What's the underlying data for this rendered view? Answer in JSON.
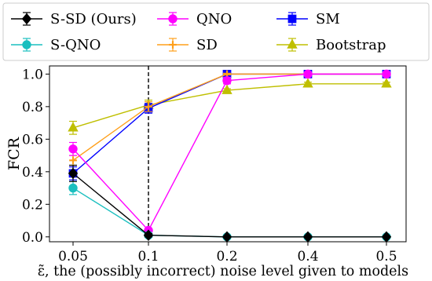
{
  "chart_data": {
    "type": "line",
    "x": [
      "0.05",
      "0.1",
      "0.2",
      "0.4",
      "0.5"
    ],
    "xlabel": "ε̃, the (possibly incorrect) noise level given to models",
    "ylabel": "FCR",
    "ylim": [
      -0.03,
      1.05
    ],
    "yticks": [
      "0.0",
      "0.2",
      "0.4",
      "0.6",
      "0.8",
      "1.0"
    ],
    "grid": false,
    "legend_position": "top",
    "reference_line": {
      "x": "0.1",
      "style": "dashed",
      "color": "#000000"
    },
    "series": [
      {
        "name": "S-SD (Ours)",
        "color": "#000000",
        "marker": "diamond",
        "values": [
          0.39,
          0.01,
          0.0,
          0.0,
          0.0
        ],
        "errors": [
          0.05,
          0.01,
          0.005,
          0.005,
          0.005
        ]
      },
      {
        "name": "S-QNO",
        "color": "#1ABFBF",
        "marker": "circle",
        "values": [
          0.3,
          0.01,
          0.0,
          0.0,
          0.0
        ],
        "errors": [
          0.04,
          0.01,
          0.005,
          0.005,
          0.005
        ]
      },
      {
        "name": "QNO",
        "color": "#FF00FF",
        "marker": "circle",
        "values": [
          0.54,
          0.04,
          0.96,
          1.0,
          1.0
        ],
        "errors": [
          0.04,
          0.01,
          0.02,
          0.005,
          0.005
        ]
      },
      {
        "name": "SD",
        "color": "#FF9F1A",
        "marker": "plus",
        "values": [
          0.47,
          0.8,
          1.0,
          1.0,
          1.0
        ],
        "errors": [
          0.03,
          0.03,
          0.005,
          0.005,
          0.005
        ]
      },
      {
        "name": "SM",
        "color": "#0000FF",
        "marker": "square",
        "values": [
          0.39,
          0.79,
          1.0,
          1.0,
          1.0
        ],
        "errors": [
          0.04,
          0.03,
          0.005,
          0.005,
          0.005
        ]
      },
      {
        "name": "Bootstrap",
        "color": "#BFBF00",
        "marker": "triangle",
        "values": [
          0.67,
          0.81,
          0.9,
          0.94,
          0.94
        ],
        "errors": [
          0.04,
          0.03,
          0.01,
          0.01,
          0.01
        ]
      }
    ]
  }
}
